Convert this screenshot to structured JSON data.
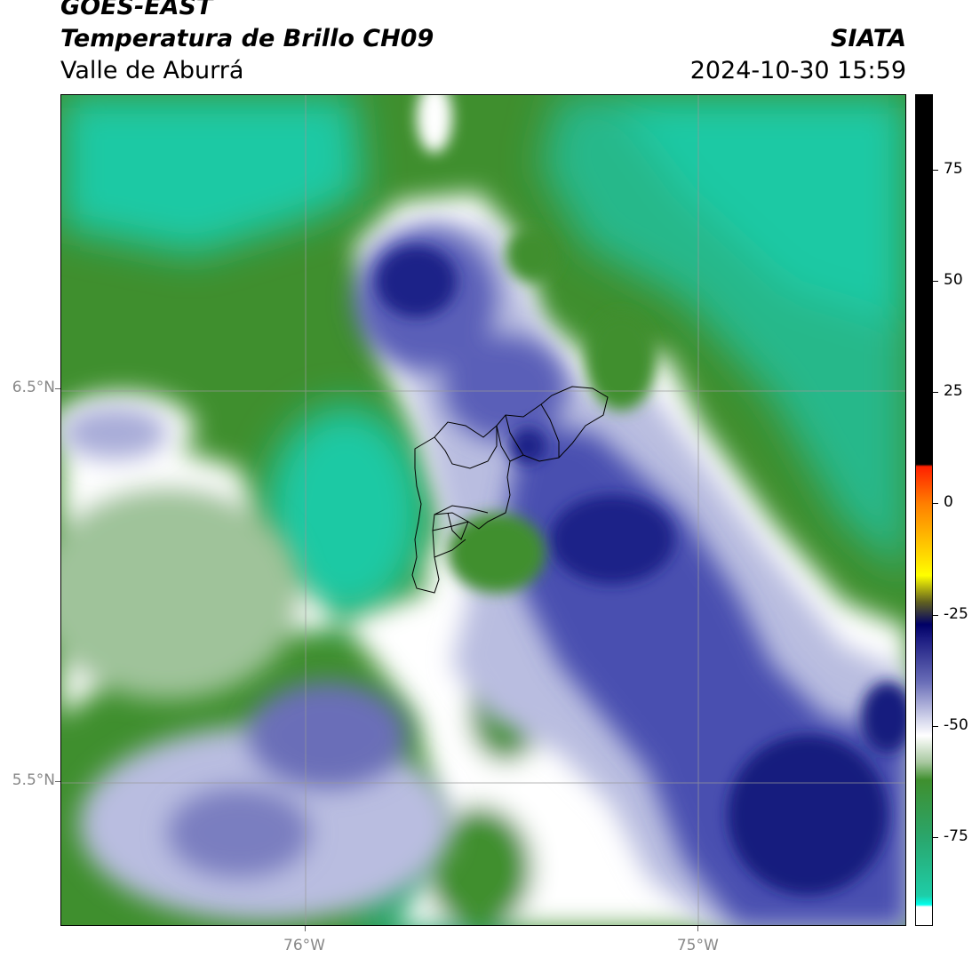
{
  "header": {
    "satellite": "GOES-EAST",
    "product": "Temperatura de Brillo CH09",
    "organization": "SIATA",
    "region": "Valle de Aburrá",
    "datetime": "2024-10-30 15:59"
  },
  "map": {
    "lat_ticks": [
      {
        "label": "6.5°N",
        "value": 6.5
      },
      {
        "label": "5.5°N",
        "value": 5.5
      }
    ],
    "lon_ticks": [
      {
        "label": "76°W",
        "value": -76
      },
      {
        "label": "75°W",
        "value": -75
      }
    ],
    "extent": {
      "lon_min": -76.62,
      "lon_max": -74.47,
      "lat_min": 5.13,
      "lat_max": 7.25
    },
    "colors": {
      "land_green": "#3f8f2e",
      "mid_green": "#2aa66c",
      "teal": "#1ec9a4",
      "white": "#ffffff",
      "light_blue": "#b9bde0",
      "blue": "#4a4fb0",
      "dark_blue": "#141a7e"
    }
  },
  "colorbar": {
    "ticks": [
      "75",
      "50",
      "25",
      "0",
      "-25",
      "-50",
      "-75"
    ],
    "tick_values": [
      75,
      50,
      25,
      0,
      -25,
      -50,
      -75
    ],
    "range": [
      -95,
      92
    ],
    "stops": [
      {
        "v": 92,
        "c": "#000000"
      },
      {
        "v": 9,
        "c": "#000000"
      },
      {
        "v": 8.5,
        "c": "#ff2000"
      },
      {
        "v": 0,
        "c": "#ff8000"
      },
      {
        "v": -12,
        "c": "#ffdd00"
      },
      {
        "v": -16,
        "c": "#ffff00"
      },
      {
        "v": -22,
        "c": "#606020"
      },
      {
        "v": -27,
        "c": "#000066"
      },
      {
        "v": -30,
        "c": "#1a1a80"
      },
      {
        "v": -40,
        "c": "#6a6eb8"
      },
      {
        "v": -48,
        "c": "#d0d2ea"
      },
      {
        "v": -52,
        "c": "#ffffff"
      },
      {
        "v": -58,
        "c": "#a8c8a0"
      },
      {
        "v": -62,
        "c": "#3f8f2e"
      },
      {
        "v": -75,
        "c": "#2aa66c"
      },
      {
        "v": -88,
        "c": "#1ecda8"
      },
      {
        "v": -90,
        "c": "#00ffee"
      },
      {
        "v": -90.5,
        "c": "#ffffff"
      },
      {
        "v": -95,
        "c": "#ffffff"
      }
    ]
  }
}
